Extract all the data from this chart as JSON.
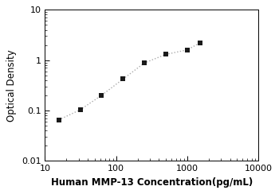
{
  "x_data": [
    15.625,
    31.25,
    62.5,
    125,
    250,
    500,
    1000,
    1500
  ],
  "y_data": [
    0.065,
    0.103,
    0.2,
    0.42,
    0.88,
    1.3,
    1.6,
    2.2
  ],
  "xlim": [
    10,
    10000
  ],
  "ylim": [
    0.01,
    10
  ],
  "xlabel": "Human MMP-13 Concentration(pg/mL)",
  "ylabel": "Optical Density",
  "line_color": "#aaaaaa",
  "marker_color": "#1a1a1a",
  "marker": "s",
  "marker_size": 4.5,
  "line_style": ":",
  "line_width": 1.0,
  "background_color": "#ffffff",
  "xticks": [
    10,
    100,
    1000,
    10000
  ],
  "yticks": [
    0.01,
    0.1,
    1,
    10
  ],
  "xlabel_fontsize": 8.5,
  "ylabel_fontsize": 8.5,
  "tick_fontsize": 8
}
